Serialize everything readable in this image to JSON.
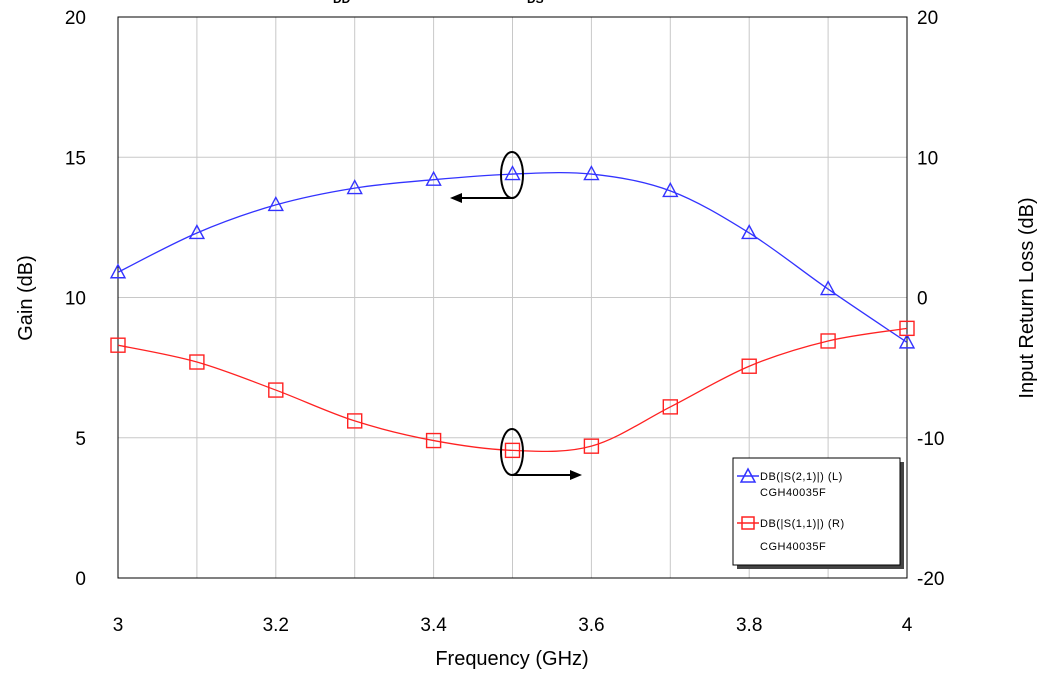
{
  "header_fragments": [
    "DD",
    "DS"
  ],
  "chart_data": {
    "type": "line",
    "xlabel": "Frequency (GHz)",
    "ylabel_left": "Gain (dB)",
    "ylabel_right": "Input Return Loss (dB)",
    "xlim": [
      3,
      4
    ],
    "ylim_left": [
      0,
      20
    ],
    "ylim_right": [
      -20,
      20
    ],
    "x_ticks": [
      "3",
      "3.2",
      "3.4",
      "3.6",
      "3.8",
      "4"
    ],
    "y_ticks_left": [
      "0",
      "5",
      "10",
      "15",
      "20"
    ],
    "y_ticks_right": [
      "-20",
      "-10",
      "0",
      "10",
      "20"
    ],
    "grid": true,
    "legend_position": "bottom-right",
    "x": [
      3.0,
      3.1,
      3.2,
      3.3,
      3.4,
      3.5,
      3.6,
      3.7,
      3.8,
      3.9,
      4.0
    ],
    "series": [
      {
        "name": "DB(|S(2,1)|) (L)",
        "sublabel": "CGH40035F",
        "axis": "left",
        "color": "#3333ff",
        "marker": "triangle",
        "values": [
          10.9,
          12.3,
          13.3,
          13.9,
          14.2,
          14.4,
          14.4,
          13.8,
          12.3,
          10.3,
          8.4
        ]
      },
      {
        "name": "DB(|S(1,1)|) (R)",
        "sublabel": "CGH40035F",
        "axis": "right",
        "color": "#ff2222",
        "marker": "square",
        "values": [
          -3.4,
          -4.6,
          -6.6,
          -8.8,
          -10.2,
          -10.9,
          -10.6,
          -7.8,
          -4.9,
          -3.1,
          -2.2
        ]
      }
    ]
  }
}
